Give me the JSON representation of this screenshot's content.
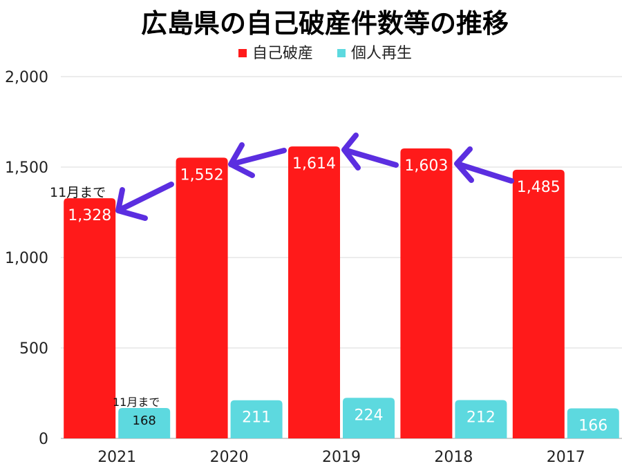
{
  "chart_data": {
    "type": "bar",
    "title": "広島県の自己破産件数等の推移",
    "categories": [
      "2021",
      "2020",
      "2019",
      "2018",
      "2017"
    ],
    "series": [
      {
        "name": "自己破産",
        "color": "#ff1a1a",
        "values": [
          1328,
          1552,
          1614,
          1603,
          1485
        ],
        "labels": [
          "1,328",
          "1,552",
          "1,614",
          "1,603",
          "1,485"
        ]
      },
      {
        "name": "個人再生",
        "color": "#5dd9df",
        "values": [
          168,
          211,
          224,
          212,
          166
        ],
        "labels": [
          "168",
          "211",
          "224",
          "212",
          "166"
        ]
      }
    ],
    "ylim": [
      0,
      2000
    ],
    "yticks": [
      "0",
      "500",
      "1,000",
      "1,500",
      "2,000"
    ],
    "ytick_values": [
      0,
      500,
      1000,
      1500,
      2000
    ],
    "grid": true,
    "legend_position": "top",
    "annotations": {
      "note_bankruptcy_2021": "11月まで",
      "note_rehab_2021": "11月まで"
    },
    "arrow_color": "#5b2ee0"
  }
}
